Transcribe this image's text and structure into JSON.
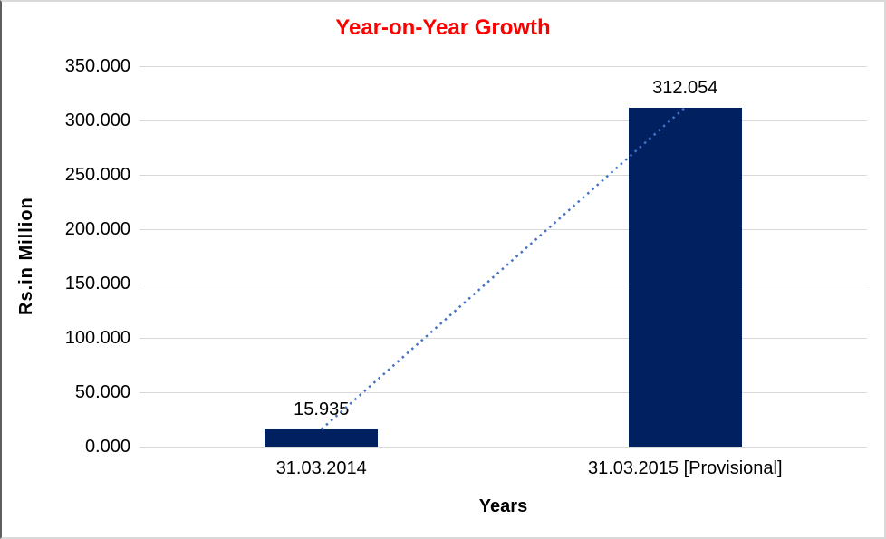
{
  "chart_data": {
    "type": "bar",
    "title": "Year-on-Year Growth",
    "title_color": "#FF0000",
    "categories": [
      "31.03.2014",
      "31.03.2015 [Provisional]"
    ],
    "values": [
      15.935,
      312.054
    ],
    "data_labels": [
      "15.935",
      "312.054"
    ],
    "xlabel": "Years",
    "ylabel": "Rs.in Million",
    "ylim": [
      0,
      350
    ],
    "ytick_interval": 50,
    "ytick_labels": [
      "0.000",
      "50.000",
      "100.000",
      "150.000",
      "200.000",
      "250.000",
      "300.000",
      "350.000"
    ],
    "grid": "horizontal-only",
    "legend_position": "none",
    "bar_color": "#002060",
    "gridline_color": "#D9D9D9",
    "text_color": "#000000",
    "trendline": {
      "style": "dotted",
      "color": "#4472C4",
      "connects": [
        "top of bar 31.03.2014",
        "top of bar 31.03.2015 [Provisional]"
      ]
    }
  }
}
